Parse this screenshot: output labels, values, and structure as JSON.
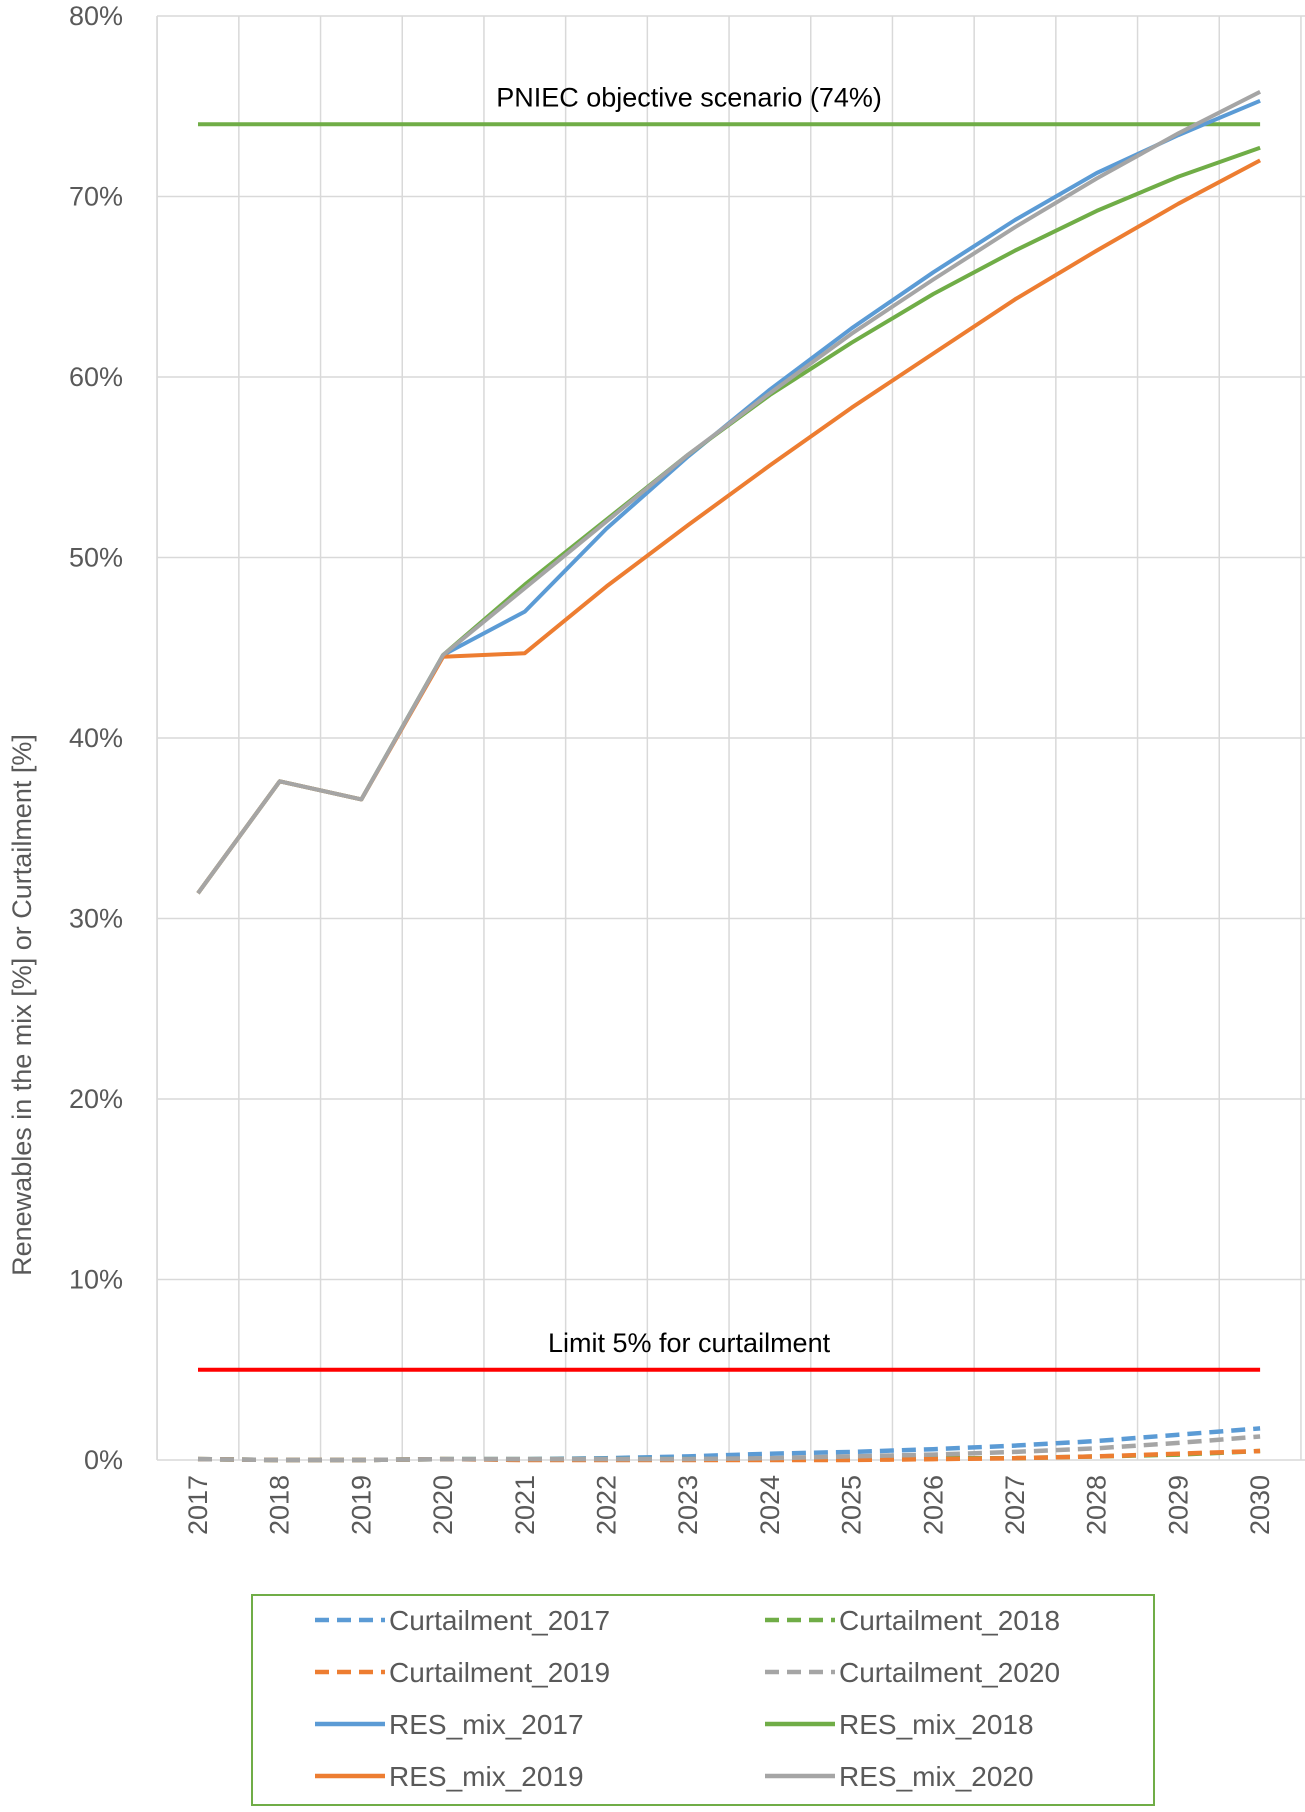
{
  "chart_data": {
    "type": "line",
    "title": "",
    "xlabel": "",
    "ylabel": "Renewables in the mix [%] or Curtailment [%]",
    "x": [
      2017,
      2018,
      2019,
      2020,
      2021,
      2022,
      2023,
      2024,
      2025,
      2026,
      2027,
      2028,
      2029,
      2030
    ],
    "x_tick_labels": [
      "2017",
      "2018",
      "2019",
      "2020",
      "2021",
      "2022",
      "2023",
      "2024",
      "2025",
      "2026",
      "2027",
      "2028",
      "2029",
      "2030"
    ],
    "ylim": [
      0,
      80
    ],
    "y_ticks": [
      0,
      10,
      20,
      30,
      40,
      50,
      60,
      70,
      80
    ],
    "y_tick_labels": [
      "0%",
      "10%",
      "20%",
      "30%",
      "40%",
      "50%",
      "60%",
      "70%",
      "80%"
    ],
    "grid": true,
    "legend_position": "bottom",
    "series": [
      {
        "name": "Curtailment_2017",
        "color": "#5B9BD5",
        "dash": true,
        "values": [
          0.05,
          0.0,
          0.0,
          0.05,
          0.05,
          0.1,
          0.2,
          0.35,
          0.45,
          0.6,
          0.8,
          1.05,
          1.4,
          1.75
        ]
      },
      {
        "name": "Curtailment_2018",
        "color": "#70AD47",
        "dash": true,
        "values": [
          0.05,
          0.0,
          0.0,
          0.05,
          0.05,
          0.05,
          0.05,
          0.05,
          0.05,
          0.1,
          0.1,
          0.2,
          0.3,
          0.5
        ]
      },
      {
        "name": "Curtailment_2019",
        "color": "#ED7D31",
        "dash": true,
        "values": [
          0.05,
          0.0,
          0.0,
          0.05,
          0.0,
          0.0,
          0.0,
          0.0,
          0.0,
          0.05,
          0.1,
          0.2,
          0.35,
          0.5
        ]
      },
      {
        "name": "Curtailment_2020",
        "color": "#A5A5A5",
        "dash": true,
        "values": [
          0.05,
          0.0,
          0.0,
          0.05,
          0.05,
          0.05,
          0.05,
          0.1,
          0.2,
          0.3,
          0.45,
          0.65,
          0.95,
          1.3
        ]
      },
      {
        "name": "RES_mix_2017",
        "color": "#5B9BD5",
        "dash": false,
        "values": [
          31.4,
          37.6,
          36.6,
          44.6,
          47.0,
          51.6,
          55.6,
          59.3,
          62.7,
          65.8,
          68.7,
          71.3,
          73.4,
          75.3
        ]
      },
      {
        "name": "RES_mix_2018",
        "color": "#70AD47",
        "dash": false,
        "values": [
          31.4,
          37.6,
          36.6,
          44.6,
          48.5,
          52.1,
          55.7,
          59.0,
          61.9,
          64.6,
          67.0,
          69.2,
          71.1,
          72.7
        ]
      },
      {
        "name": "RES_mix_2019",
        "color": "#ED7D31",
        "dash": false,
        "values": [
          31.4,
          37.6,
          36.6,
          44.5,
          44.7,
          48.4,
          51.8,
          55.1,
          58.3,
          61.3,
          64.3,
          67.0,
          69.6,
          72.0
        ]
      },
      {
        "name": "RES_mix_2020",
        "color": "#A5A5A5",
        "dash": false,
        "values": [
          31.4,
          37.6,
          36.6,
          44.6,
          48.3,
          52.0,
          55.7,
          59.1,
          62.4,
          65.4,
          68.3,
          71.0,
          73.5,
          75.8
        ]
      }
    ],
    "reference_lines": [
      {
        "label": "PNIEC objective scenario (74%)",
        "value": 74,
        "color": "#70AD47"
      },
      {
        "label": "Limit 5% for curtailment",
        "value": 5,
        "color": "#FF0000"
      }
    ],
    "legend_border_color": "#70AD47",
    "grid_color": "#D9D9D9"
  }
}
